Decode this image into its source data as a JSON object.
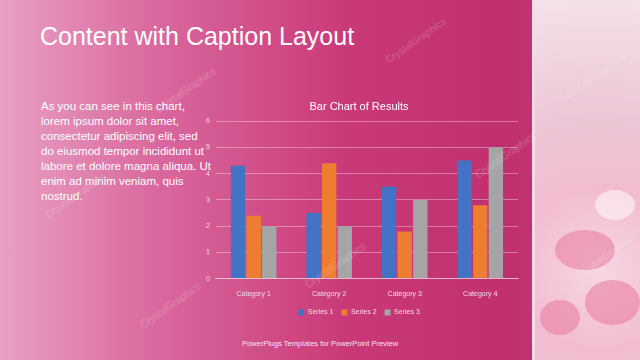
{
  "slide": {
    "title": "Content with Caption Layout",
    "caption": "As you can see in this chart, lorem ipsum dolor sit amet, consectetur adipiscing elit, sed do eiusmod tempor incididunt ut labore et dolore magna aliqua. Ut enim ad minim veniam, quis nostrud.",
    "footer": "PowerPlugs Templates for PowerPoint Preview",
    "watermark": "CrystalGraphics"
  },
  "chart_data": {
    "type": "bar",
    "title": "Bar Chart of Results",
    "categories": [
      "Category 1",
      "Category 2",
      "Category 3",
      "Category 4"
    ],
    "series": [
      {
        "name": "Series 1",
        "color": "#4472c4",
        "values": [
          4.3,
          2.5,
          3.5,
          4.5
        ]
      },
      {
        "name": "Series 2",
        "color": "#ed7d31",
        "values": [
          2.4,
          4.4,
          1.8,
          2.8
        ]
      },
      {
        "name": "Series 3",
        "color": "#a5a5a5",
        "values": [
          2.0,
          2.0,
          3.0,
          5.0
        ]
      }
    ],
    "ylim": [
      0,
      6
    ],
    "yticks": [
      0,
      1,
      2,
      3,
      4,
      5,
      6
    ],
    "grid": true,
    "legend": "bottom"
  }
}
